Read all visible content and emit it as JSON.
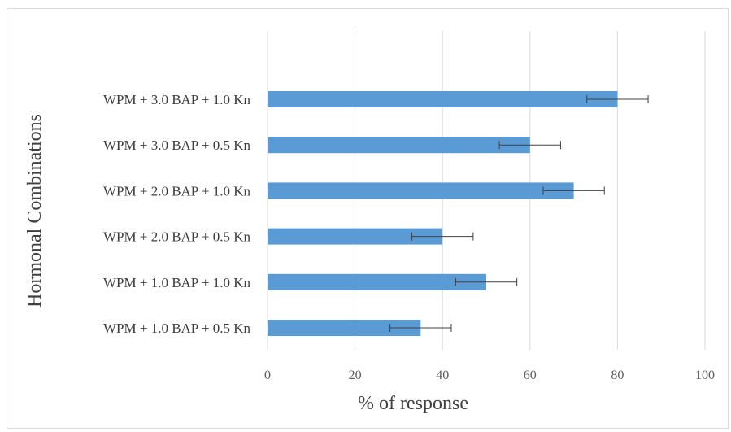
{
  "chart_data": {
    "type": "bar",
    "orientation": "horizontal",
    "categories": [
      "WPM + 3.0 BAP + 1.0 Kn",
      "WPM + 3.0 BAP + 0.5 Kn",
      "WPM + 2.0 BAP + 1.0 Kn",
      "WPM + 2.0 BAP + 0.5 Kn",
      "WPM + 1.0 BAP + 1.0 Kn",
      "WPM + 1.0 BAP + 0.5 Kn"
    ],
    "values": [
      80,
      60,
      70,
      40,
      50,
      35
    ],
    "errors": [
      7,
      7,
      7,
      7,
      7,
      7
    ],
    "xlabel": "% of response",
    "ylabel": "Hormonal Combinations",
    "xlim": [
      0,
      100
    ],
    "xticks": [
      "0",
      "20",
      "40",
      "60",
      "80",
      "100"
    ],
    "grid": true,
    "legend": "none",
    "colors": {
      "bar": "#5b9bd5",
      "grid": "#d9d9d9",
      "error": "#404040"
    }
  }
}
